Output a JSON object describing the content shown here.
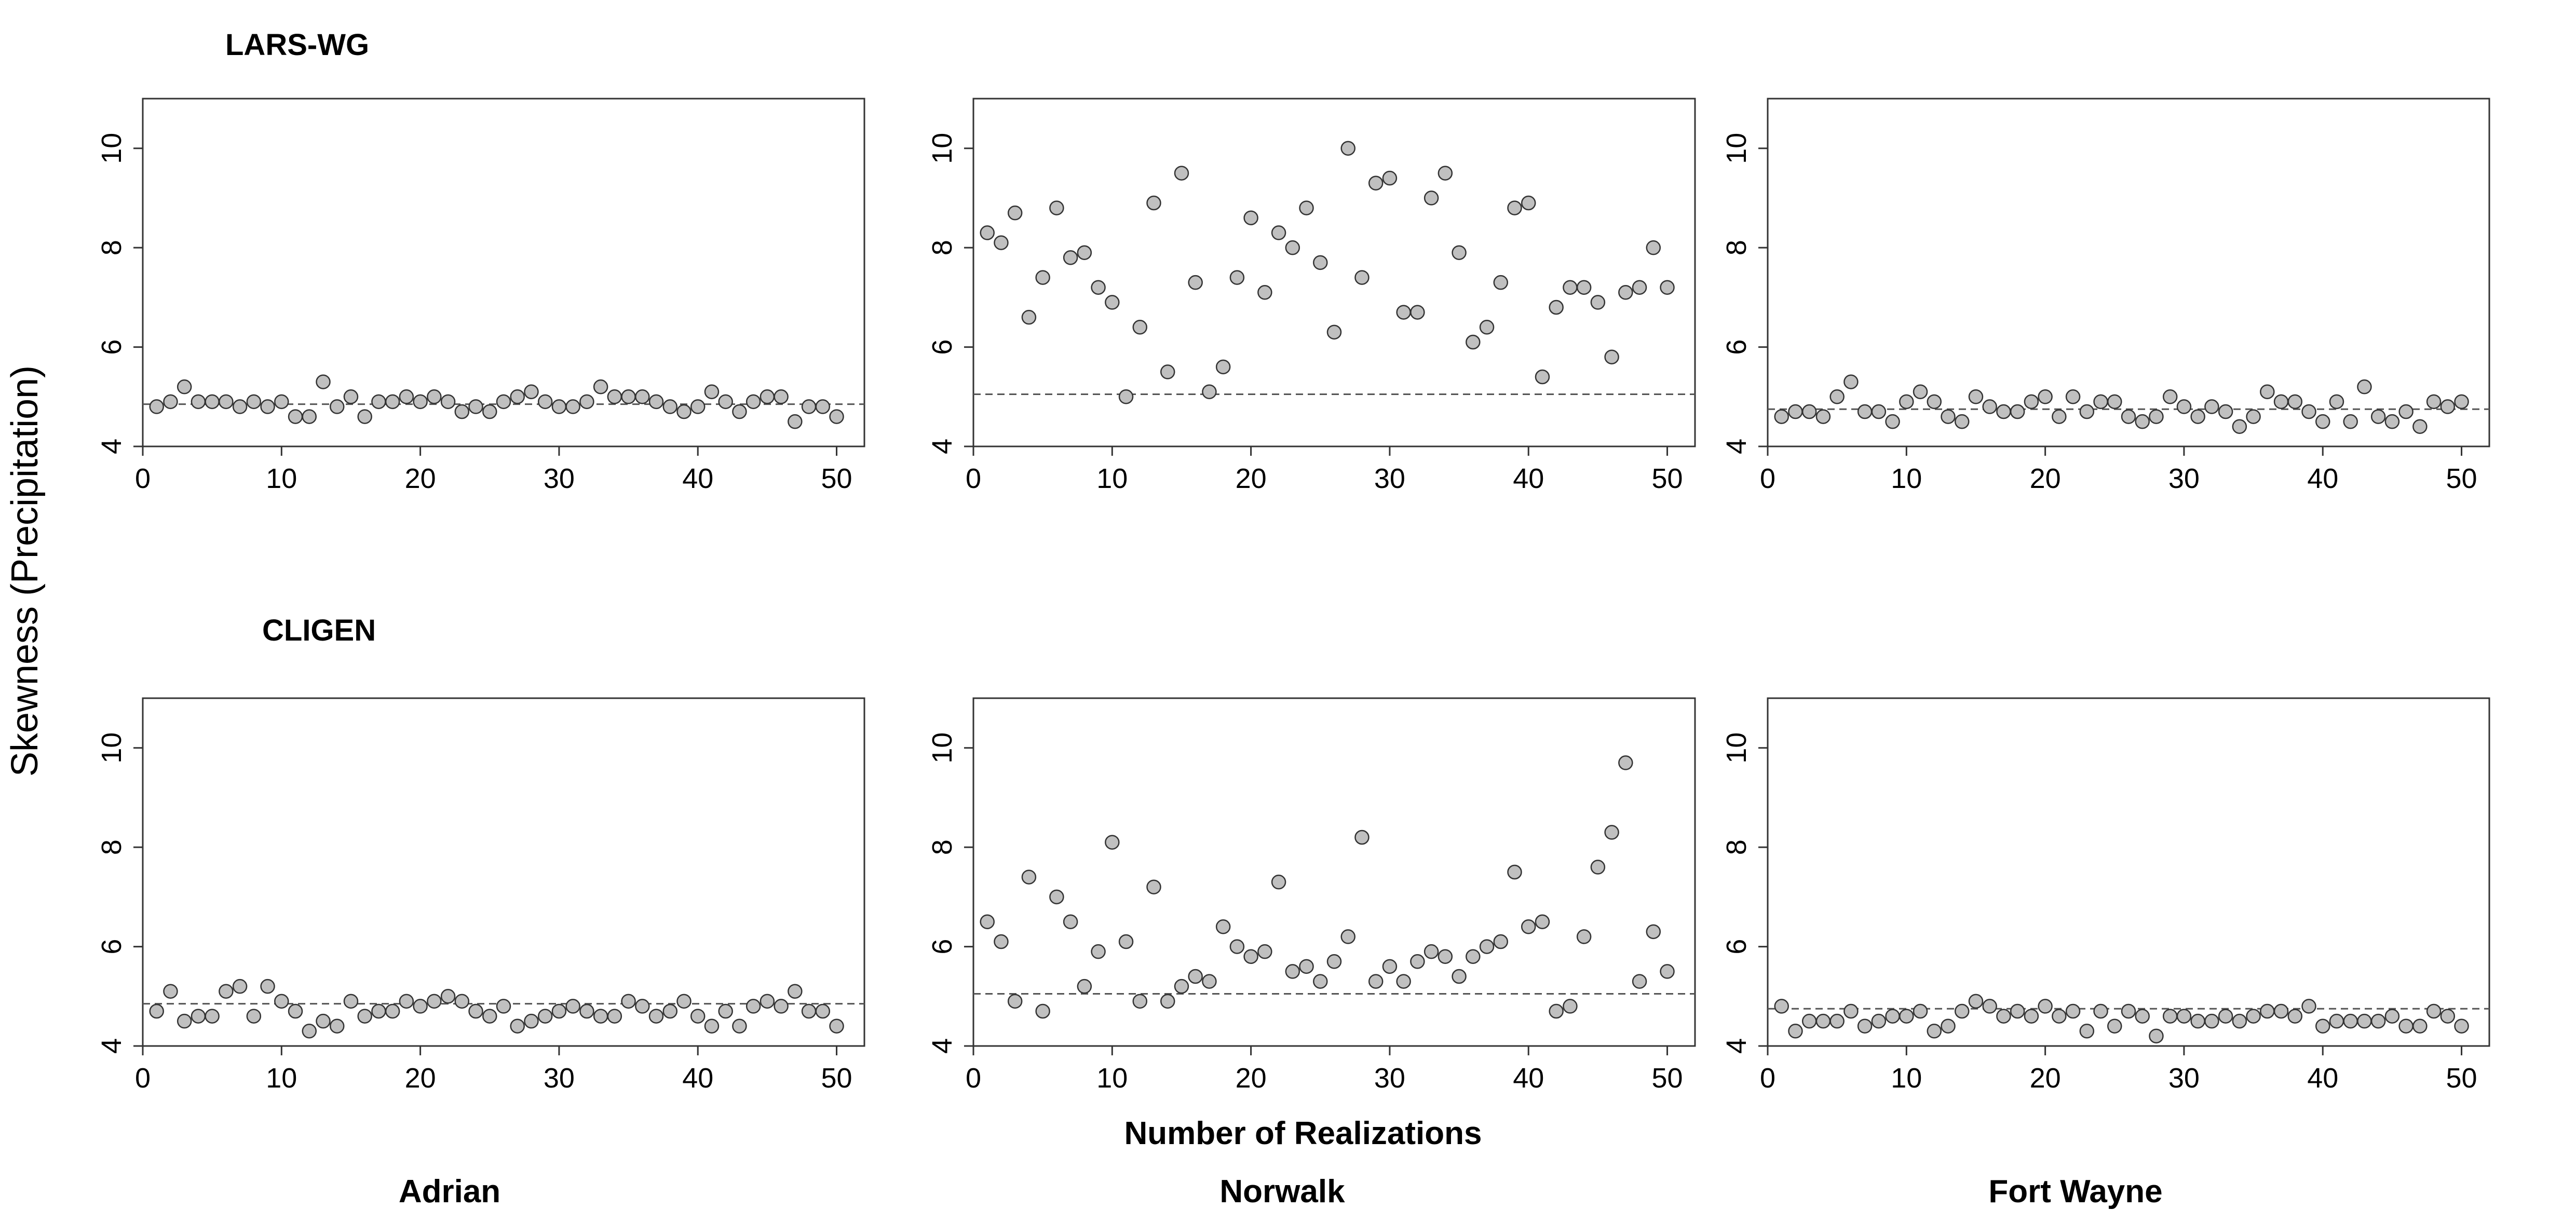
{
  "figure": {
    "ylabel": "Skewness (Precipitation)",
    "xlabel": "Number of Realizations",
    "row_labels": [
      "LARS-WG",
      "CLIGEN"
    ],
    "column_labels": [
      "Adrian",
      "Norwalk",
      "Fort Wayne"
    ]
  },
  "style": {
    "point_fill": "#c0c0c0",
    "point_stroke": "#333333",
    "frame": "#333333",
    "reference_line": "#555555"
  },
  "chart_data": [
    {
      "type": "scatter",
      "row": "LARS-WG",
      "column": "Adrian",
      "x": [
        1,
        2,
        3,
        4,
        5,
        6,
        7,
        8,
        9,
        10,
        11,
        12,
        13,
        14,
        15,
        16,
        17,
        18,
        19,
        20,
        21,
        22,
        23,
        24,
        25,
        26,
        27,
        28,
        29,
        30,
        31,
        32,
        33,
        34,
        35,
        36,
        37,
        38,
        39,
        40,
        41,
        42,
        43,
        44,
        45,
        46,
        47,
        48,
        49,
        50
      ],
      "y": [
        4.8,
        4.9,
        5.2,
        4.9,
        4.9,
        4.9,
        4.8,
        4.9,
        4.8,
        4.9,
        4.6,
        4.6,
        5.3,
        4.8,
        5.0,
        4.6,
        4.9,
        4.9,
        5.0,
        4.9,
        5.0,
        4.9,
        4.7,
        4.8,
        4.7,
        4.9,
        5.0,
        5.1,
        4.9,
        4.8,
        4.8,
        4.9,
        5.2,
        5.0,
        5.0,
        5.0,
        4.9,
        4.8,
        4.7,
        4.8,
        5.1,
        4.9,
        4.7,
        4.9,
        5.0,
        5.0,
        4.5,
        4.8,
        4.8,
        4.6
      ],
      "reference": 4.85,
      "xlim": [
        0,
        52
      ],
      "ylim": [
        4,
        11
      ],
      "xticks": [
        0,
        10,
        20,
        30,
        40,
        50
      ],
      "yticks": [
        4,
        6,
        8,
        10
      ]
    },
    {
      "type": "scatter",
      "row": "LARS-WG",
      "column": "Norwalk",
      "x": [
        1,
        2,
        3,
        4,
        5,
        6,
        7,
        8,
        9,
        10,
        11,
        12,
        13,
        14,
        15,
        16,
        17,
        18,
        19,
        20,
        21,
        22,
        23,
        24,
        25,
        26,
        27,
        28,
        29,
        30,
        31,
        32,
        33,
        34,
        35,
        36,
        37,
        38,
        39,
        40,
        41,
        42,
        43,
        44,
        45,
        46,
        47,
        48,
        49,
        50
      ],
      "y": [
        8.3,
        8.1,
        8.7,
        6.6,
        7.4,
        8.8,
        7.8,
        7.9,
        7.2,
        6.9,
        5.0,
        6.4,
        8.9,
        5.5,
        9.5,
        7.3,
        5.1,
        5.6,
        7.4,
        8.6,
        7.1,
        8.3,
        8.0,
        8.8,
        7.7,
        6.3,
        10.0,
        7.4,
        9.3,
        9.4,
        6.7,
        6.7,
        9.0,
        9.5,
        7.9,
        6.1,
        6.4,
        7.3,
        8.8,
        8.9,
        5.4,
        6.8,
        7.2,
        7.2,
        6.9,
        5.8,
        7.1,
        7.2,
        8.0,
        7.2
      ],
      "reference": 5.05,
      "xlim": [
        0,
        52
      ],
      "ylim": [
        4,
        11
      ],
      "xticks": [
        0,
        10,
        20,
        30,
        40,
        50
      ],
      "yticks": [
        4,
        6,
        8,
        10
      ]
    },
    {
      "type": "scatter",
      "row": "LARS-WG",
      "column": "Fort Wayne",
      "x": [
        1,
        2,
        3,
        4,
        5,
        6,
        7,
        8,
        9,
        10,
        11,
        12,
        13,
        14,
        15,
        16,
        17,
        18,
        19,
        20,
        21,
        22,
        23,
        24,
        25,
        26,
        27,
        28,
        29,
        30,
        31,
        32,
        33,
        34,
        35,
        36,
        37,
        38,
        39,
        40,
        41,
        42,
        43,
        44,
        45,
        46,
        47,
        48,
        49,
        50
      ],
      "y": [
        4.6,
        4.7,
        4.7,
        4.6,
        5.0,
        5.3,
        4.7,
        4.7,
        4.5,
        4.9,
        5.1,
        4.9,
        4.6,
        4.5,
        5.0,
        4.8,
        4.7,
        4.7,
        4.9,
        5.0,
        4.6,
        5.0,
        4.7,
        4.9,
        4.9,
        4.6,
        4.5,
        4.6,
        5.0,
        4.8,
        4.6,
        4.8,
        4.7,
        4.4,
        4.6,
        5.1,
        4.9,
        4.9,
        4.7,
        4.5,
        4.9,
        4.5,
        5.2,
        4.6,
        4.5,
        4.7,
        4.4,
        4.9,
        4.8,
        4.9
      ],
      "reference": 4.75,
      "xlim": [
        0,
        52
      ],
      "ylim": [
        4,
        11
      ],
      "xticks": [
        0,
        10,
        20,
        30,
        40,
        50
      ],
      "yticks": [
        4,
        6,
        8,
        10
      ]
    },
    {
      "type": "scatter",
      "row": "CLIGEN",
      "column": "Adrian",
      "x": [
        1,
        2,
        3,
        4,
        5,
        6,
        7,
        8,
        9,
        10,
        11,
        12,
        13,
        14,
        15,
        16,
        17,
        18,
        19,
        20,
        21,
        22,
        23,
        24,
        25,
        26,
        27,
        28,
        29,
        30,
        31,
        32,
        33,
        34,
        35,
        36,
        37,
        38,
        39,
        40,
        41,
        42,
        43,
        44,
        45,
        46,
        47,
        48,
        49,
        50
      ],
      "y": [
        4.7,
        5.1,
        4.5,
        4.6,
        4.6,
        5.1,
        5.2,
        4.6,
        5.2,
        4.9,
        4.7,
        4.3,
        4.5,
        4.4,
        4.9,
        4.6,
        4.7,
        4.7,
        4.9,
        4.8,
        4.9,
        5.0,
        4.9,
        4.7,
        4.6,
        4.8,
        4.4,
        4.5,
        4.6,
        4.7,
        4.8,
        4.7,
        4.6,
        4.6,
        4.9,
        4.8,
        4.6,
        4.7,
        4.9,
        4.6,
        4.4,
        4.7,
        4.4,
        4.8,
        4.9,
        4.8,
        5.1,
        4.7,
        4.7,
        4.4
      ],
      "reference": 4.85,
      "xlim": [
        0,
        52
      ],
      "ylim": [
        4,
        11
      ],
      "xticks": [
        0,
        10,
        20,
        30,
        40,
        50
      ],
      "yticks": [
        4,
        6,
        8,
        10
      ]
    },
    {
      "type": "scatter",
      "row": "CLIGEN",
      "column": "Norwalk",
      "x": [
        1,
        2,
        3,
        4,
        5,
        6,
        7,
        8,
        9,
        10,
        11,
        12,
        13,
        14,
        15,
        16,
        17,
        18,
        19,
        20,
        21,
        22,
        23,
        24,
        25,
        26,
        27,
        28,
        29,
        30,
        31,
        32,
        33,
        34,
        35,
        36,
        37,
        38,
        39,
        40,
        41,
        42,
        43,
        44,
        45,
        46,
        47,
        48,
        49,
        50
      ],
      "y": [
        6.5,
        6.1,
        4.9,
        7.4,
        4.7,
        7.0,
        6.5,
        5.2,
        5.9,
        8.1,
        6.1,
        4.9,
        7.2,
        4.9,
        5.2,
        5.4,
        5.3,
        6.4,
        6.0,
        5.8,
        5.9,
        7.3,
        5.5,
        5.6,
        5.3,
        5.7,
        6.2,
        8.2,
        5.3,
        5.6,
        5.3,
        5.7,
        5.9,
        5.8,
        5.4,
        5.8,
        6.0,
        6.1,
        7.5,
        6.4,
        6.5,
        4.7,
        4.8,
        6.2,
        7.6,
        8.3,
        9.7,
        5.3,
        6.3,
        5.5
      ],
      "reference": 5.05,
      "xlim": [
        0,
        52
      ],
      "ylim": [
        4,
        11
      ],
      "xticks": [
        0,
        10,
        20,
        30,
        40,
        50
      ],
      "yticks": [
        4,
        6,
        8,
        10
      ]
    },
    {
      "type": "scatter",
      "row": "CLIGEN",
      "column": "Fort Wayne",
      "x": [
        1,
        2,
        3,
        4,
        5,
        6,
        7,
        8,
        9,
        10,
        11,
        12,
        13,
        14,
        15,
        16,
        17,
        18,
        19,
        20,
        21,
        22,
        23,
        24,
        25,
        26,
        27,
        28,
        29,
        30,
        31,
        32,
        33,
        34,
        35,
        36,
        37,
        38,
        39,
        40,
        41,
        42,
        43,
        44,
        45,
        46,
        47,
        48,
        49,
        50
      ],
      "y": [
        4.8,
        4.3,
        4.5,
        4.5,
        4.5,
        4.7,
        4.4,
        4.5,
        4.6,
        4.6,
        4.7,
        4.3,
        4.4,
        4.7,
        4.9,
        4.8,
        4.6,
        4.7,
        4.6,
        4.8,
        4.6,
        4.7,
        4.3,
        4.7,
        4.4,
        4.7,
        4.6,
        4.2,
        4.6,
        4.6,
        4.5,
        4.5,
        4.6,
        4.5,
        4.6,
        4.7,
        4.7,
        4.6,
        4.8,
        4.4,
        4.5,
        4.5,
        4.5,
        4.5,
        4.6,
        4.4,
        4.4,
        4.7,
        4.6,
        4.4
      ],
      "reference": 4.75,
      "xlim": [
        0,
        52
      ],
      "ylim": [
        4,
        11
      ],
      "xticks": [
        0,
        10,
        20,
        30,
        40,
        50
      ],
      "yticks": [
        4,
        6,
        8,
        10
      ]
    }
  ]
}
